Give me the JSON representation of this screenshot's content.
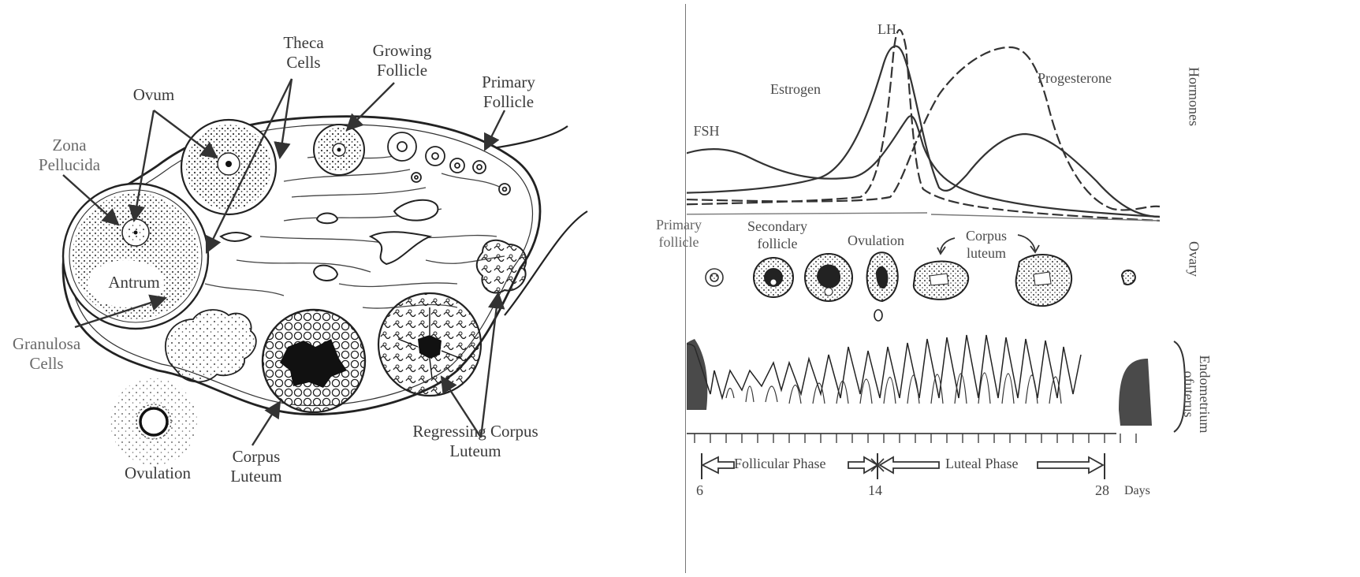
{
  "ovary_diagram": {
    "labels": {
      "theca_cells": "Theca\nCells",
      "growing_follicle": "Growing\nFollicle",
      "primary_follicle": "Primary\nFollicle",
      "ovum": "Ovum",
      "zona_pellucida": "Zona\nPellucida",
      "antrum": "Antrum",
      "granulosa_cells": "Granulosa\nCells",
      "ovulation": "Ovulation",
      "corpus_luteum": "Corpus\nLuteum",
      "regressing_corpus_luteum": "Regressing Corpus\nLuteum"
    }
  },
  "cycle_diagram": {
    "hormones": {
      "section_label": "Hormones",
      "fsh": "FSH",
      "estrogen": "Estrogen",
      "lh": "LH",
      "progesterone": "Progesterone"
    },
    "ovary": {
      "section_label": "Ovary",
      "primary_follicle": "Primary\nfollicle",
      "secondary_follicle": "Secondary\nfollicle",
      "ovulation": "Ovulation",
      "corpus_luteum": "Corpus\nluteum"
    },
    "endometrium": {
      "section_label": "Endometrium\nofuterus"
    },
    "phases": {
      "follicular": "Follicular Phase",
      "luteal": "Luteal Phase"
    },
    "days": {
      "d6": "6",
      "d14": "14",
      "d28": "28",
      "unit": "Days"
    }
  }
}
